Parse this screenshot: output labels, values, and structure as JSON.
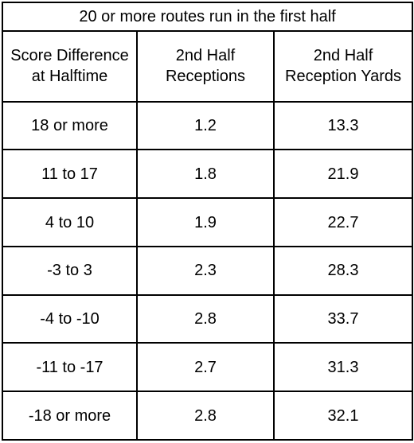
{
  "table": {
    "title": "20 or more routes run in the first half",
    "headers": [
      "Score Difference at Halftime",
      "2nd Half Receptions",
      "2nd Half Reception Yards"
    ],
    "rows": [
      [
        "18 or more",
        "1.2",
        "13.3"
      ],
      [
        "11 to 17",
        "1.8",
        "21.9"
      ],
      [
        "4 to 10",
        "1.9",
        "22.7"
      ],
      [
        "-3 to 3",
        "2.3",
        "28.3"
      ],
      [
        "-4 to -10",
        "2.8",
        "33.7"
      ],
      [
        "-11 to -17",
        "2.7",
        "31.3"
      ],
      [
        "-18 or more",
        "2.8",
        "32.1"
      ]
    ]
  }
}
